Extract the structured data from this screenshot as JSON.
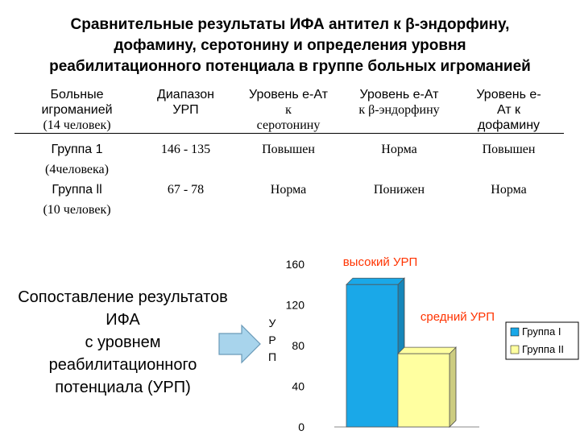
{
  "title": {
    "line1": "Сравнительные результаты ИФА антител  к β-эндорфину,",
    "line2": "дофамину,  серотонину и определения уровня",
    "line3": "реабилитационного потенциала в группе больных  игроманией"
  },
  "table": {
    "headers": {
      "col1": [
        "Больные",
        "игроманией",
        "(14 человек)"
      ],
      "col2": [
        "Диапазон",
        "УРП"
      ],
      "col3": [
        "Уровень е-Ат",
        "к",
        "серотонину"
      ],
      "col4": [
        "Уровень е-Ат",
        "к  β-эндорфину"
      ],
      "col5": [
        "Уровень е-",
        "Ат к",
        "дофамину"
      ]
    },
    "rows": [
      {
        "group": [
          "Группа 1",
          "(4человека)"
        ],
        "range": "146 - 135",
        "serotonin": "Повышен",
        "endorphin": "Норма",
        "dopamine": "Повышен"
      },
      {
        "group": [
          "Группа ll",
          "(10 человек)"
        ],
        "range": "67 - 78",
        "serotonin": "Норма",
        "endorphin": "Понижен",
        "dopamine": "Норма"
      }
    ]
  },
  "left_text": [
    "Сопоставление результатов",
    "ИФА",
    "с уровнем",
    "реабилитационного",
    "потенциала (УРП)"
  ],
  "colors": {
    "group1": "#1aa8e8",
    "group2": "#ffffa0",
    "annotation": "#ff3300",
    "arrow_fill": "#a8d4ec",
    "arrow_stroke": "#6a9ab8"
  },
  "chart_data": {
    "type": "bar",
    "categories": [
      ""
    ],
    "series": [
      {
        "name": "Группа I",
        "values": [
          140
        ]
      },
      {
        "name": "Группа II",
        "values": [
          72
        ]
      }
    ],
    "ylabel": "У Р П",
    "ylim": [
      0,
      160
    ],
    "yticks": [
      "0",
      "40",
      "80",
      "120",
      "160"
    ],
    "annotations": [
      "высокий УРП",
      "средний УРП"
    ],
    "legend": "right"
  }
}
